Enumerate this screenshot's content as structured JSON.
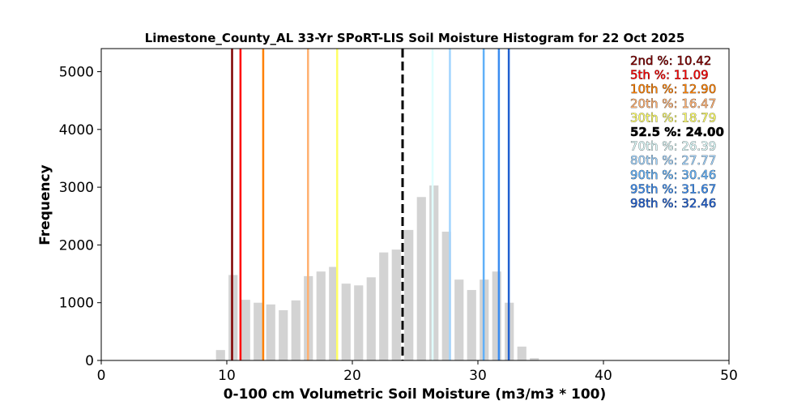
{
  "chart_data": {
    "type": "bar",
    "title": "Limestone_County_AL 33-Yr SPoRT-LIS Soil Moisture Histogram for 22 Oct 2025",
    "xlabel": "0-100 cm Volumetric Soil Moisture (m3/m3 * 100)",
    "ylabel": "Frequency",
    "xlim": [
      0,
      50
    ],
    "ylim": [
      0,
      5400
    ],
    "xticks": [
      "0",
      "10",
      "20",
      "30",
      "40",
      "50"
    ],
    "yticks": [
      "0",
      "1000",
      "2000",
      "3000",
      "4000",
      "5000"
    ],
    "bin_centers": [
      9.5,
      10.5,
      11.5,
      12.5,
      13.5,
      14.5,
      15.5,
      16.5,
      17.5,
      18.5,
      19.5,
      20.5,
      21.5,
      22.5,
      23.5,
      24.5,
      25.5,
      26.5,
      27.5,
      28.5,
      29.5,
      30.5,
      31.5,
      32.5,
      33.5,
      34.5
    ],
    "values": [
      180,
      1480,
      1050,
      1000,
      970,
      870,
      1040,
      1460,
      1540,
      1620,
      1330,
      1300,
      1440,
      1870,
      1920,
      2260,
      2830,
      3030,
      2230,
      1400,
      1220,
      1400,
      1540,
      1000,
      240,
      40
    ],
    "bar_color": "#d3d3d3",
    "legend_placement": "top-right",
    "percentiles": [
      {
        "label": "2nd %: 10.42",
        "value": 10.42,
        "color": "#800000"
      },
      {
        "label": "5th %: 11.09",
        "value": 11.09,
        "color": "#ff0000"
      },
      {
        "label": "10th %: 12.90",
        "value": 12.9,
        "color": "#ff8000"
      },
      {
        "label": "20th %: 16.47",
        "value": 16.47,
        "color": "#ffb070"
      },
      {
        "label": "30th %: 18.79",
        "value": 18.79,
        "color": "#ffff66"
      },
      {
        "label": "52.5 %: 24.00",
        "value": 24.0,
        "color": "#000000",
        "dashed": true
      },
      {
        "label": "70th %: 26.39",
        "value": 26.39,
        "color": "#e0ffff"
      },
      {
        "label": "80th %: 27.77",
        "value": 27.77,
        "color": "#a0d4ff"
      },
      {
        "label": "90th %: 30.46",
        "value": 30.46,
        "color": "#60b0f8"
      },
      {
        "label": "95th %: 31.67",
        "value": 31.67,
        "color": "#3a8cf0"
      },
      {
        "label": "98th %: 32.46",
        "value": 32.46,
        "color": "#2060d0"
      }
    ]
  }
}
